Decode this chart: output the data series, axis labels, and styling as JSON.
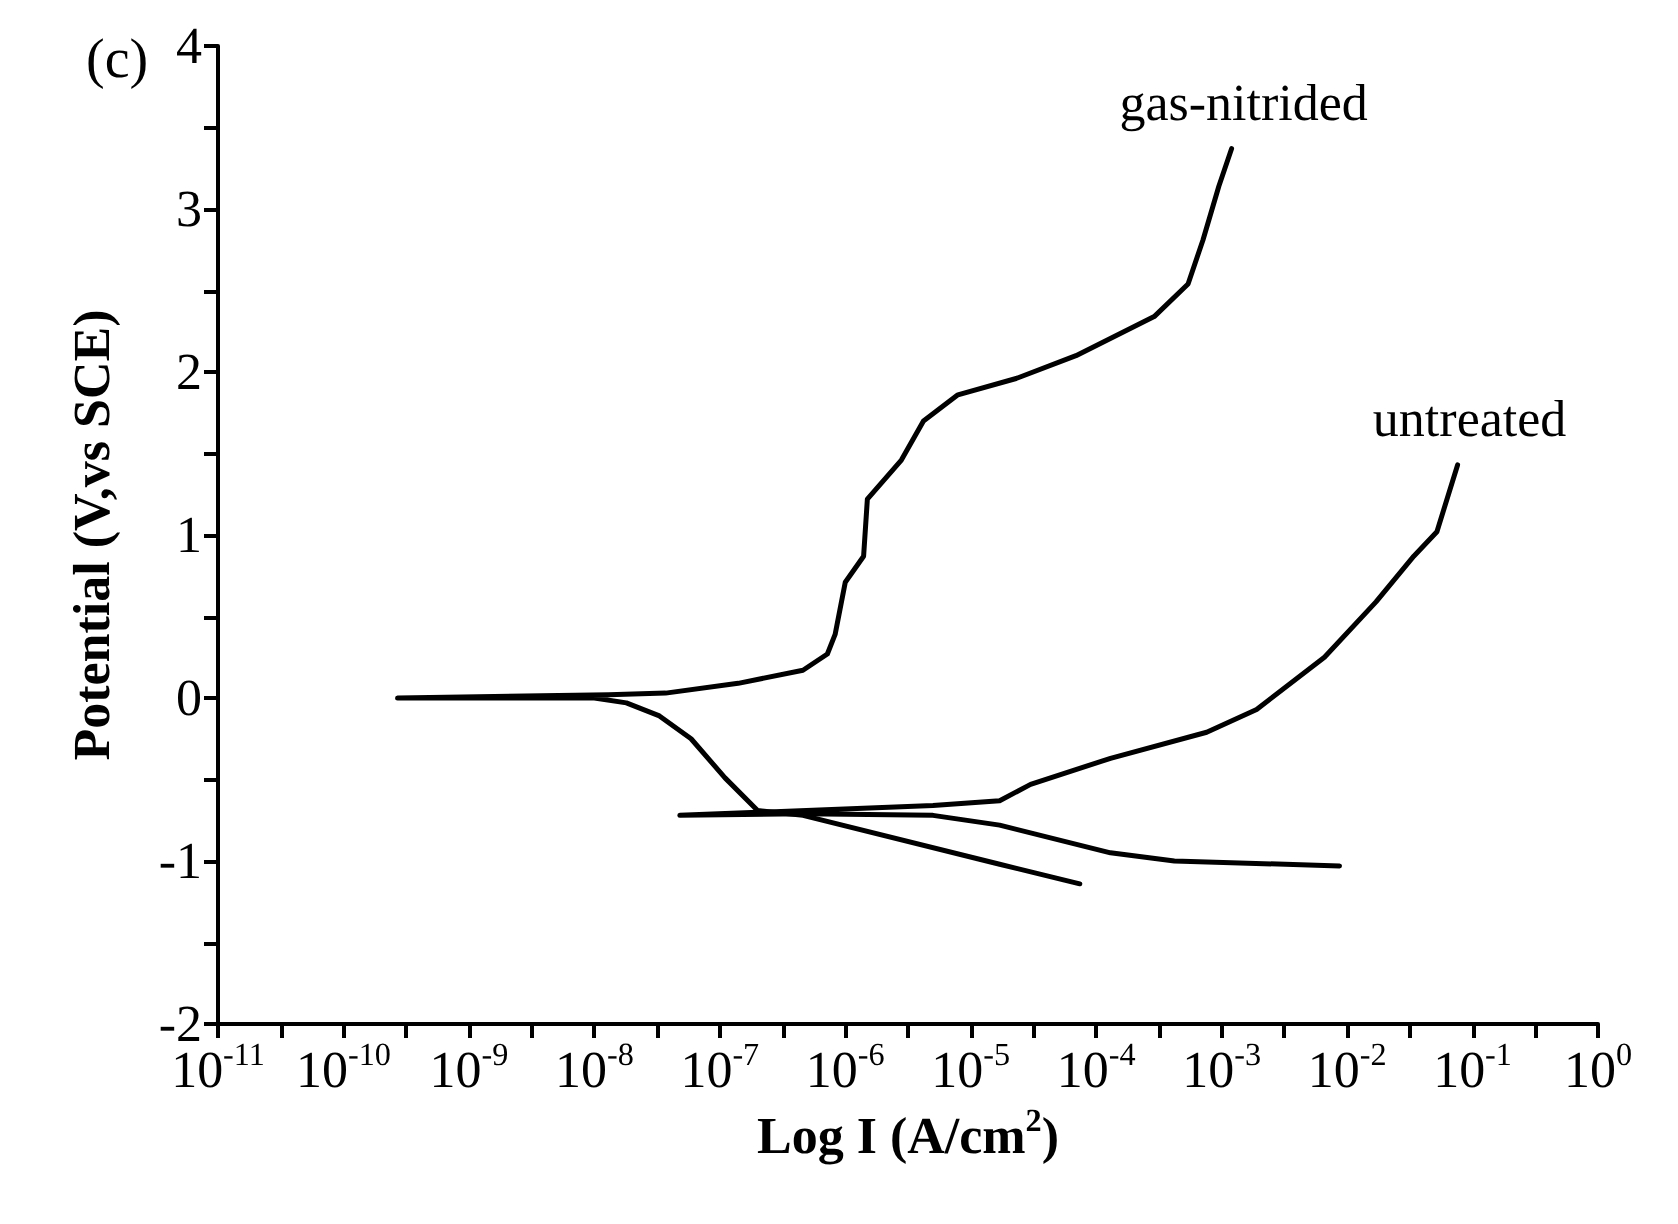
{
  "chart_data": {
    "type": "line",
    "xlabel": "Log I (A/cm$^{2}$)",
    "ylabel": "Potential (V,vs SCE)",
    "annotations": [
      "(c)"
    ],
    "log": "x",
    "grid": false,
    "legend": false,
    "marker": "none",
    "line_style": "solid",
    "xlim": [
      1e-11,
      1
    ],
    "ylim": [
      -2,
      4
    ],
    "xticks": [
      {
        "value": 1e-11,
        "label": "10$^{-11}$"
      },
      {
        "value": 3.16e-11,
        "label": null
      },
      {
        "value": 1e-10,
        "label": "10$^{-10}$"
      },
      {
        "value": 3.16e-10,
        "label": null
      },
      {
        "value": 1e-09,
        "label": "10$^{-9}$"
      },
      {
        "value": 3.16e-09,
        "label": null
      },
      {
        "value": 1e-08,
        "label": "10$^{-8}$"
      },
      {
        "value": 3.16e-08,
        "label": null
      },
      {
        "value": 1e-07,
        "label": "10$^{-7}$"
      },
      {
        "value": 3.16e-07,
        "label": null
      },
      {
        "value": 1e-06,
        "label": "10$^{-6}$"
      },
      {
        "value": 3.16e-06,
        "label": null
      },
      {
        "value": 1e-05,
        "label": "10$^{-5}$"
      },
      {
        "value": 3.16e-05,
        "label": null
      },
      {
        "value": 0.0001,
        "label": "10$^{-4}$"
      },
      {
        "value": 0.000316,
        "label": null
      },
      {
        "value": 0.001,
        "label": "10$^{-3}$"
      },
      {
        "value": 0.00316,
        "label": null
      },
      {
        "value": 0.01,
        "label": "10$^{-2}$"
      },
      {
        "value": 0.0316,
        "label": null
      },
      {
        "value": 0.1,
        "label": "10$^{-1}$"
      },
      {
        "value": 0.316,
        "label": null
      },
      {
        "value": 1,
        "label": "10$^{0}$"
      }
    ],
    "yticks": [
      -2,
      {
        "value": -1.5,
        "label": null
      },
      -1,
      {
        "value": -0.5,
        "label": null
      },
      0,
      {
        "value": 0.5,
        "label": null
      },
      1,
      {
        "value": 1.5,
        "label": null
      },
      2,
      {
        "value": 2.5,
        "label": null
      },
      3,
      {
        "value": 3.5,
        "label": null
      },
      4
    ],
    "series": [
      {
        "name": "gas-nitrided",
        "color": "#000000",
        "x": [
          7.4e-05,
          1.7e-05,
          4.6e-07,
          2e-07,
          1.1e-07,
          5.9e-08,
          3.3e-08,
          1.8e-08,
          1e-08,
          2.7e-10,
          1.3e-08,
          3.7e-08,
          1.4e-07,
          4.6e-07,
          7.2e-07,
          8.3e-07,
          1e-06,
          1.4e-06,
          1.5e-06,
          2.8e-06,
          4.2e-06,
          7.9e-06,
          2.3e-05,
          6.9e-05,
          0.00029,
          0.00054,
          0.00071,
          0.00095,
          0.0012
        ],
        "values": [
          -1.14,
          -1.02,
          -0.72,
          -0.69,
          -0.49,
          -0.25,
          -0.11,
          -0.03,
          0.0,
          0.0,
          0.02,
          0.03,
          0.09,
          0.17,
          0.27,
          0.39,
          0.71,
          0.87,
          1.22,
          1.46,
          1.7,
          1.86,
          1.96,
          2.1,
          2.34,
          2.54,
          2.81,
          3.14,
          3.37
        ]
      },
      {
        "name": "untreated",
        "color": "#000000",
        "x": [
          0.0087,
          0.00042,
          0.00013,
          1.7e-05,
          5e-06,
          4.6e-07,
          4.8e-08,
          5e-06,
          1.7e-05,
          3e-05,
          0.00013,
          0.00076,
          0.0019,
          0.0066,
          0.017,
          0.034,
          0.052,
          0.076
        ],
        "values": [
          -1.03,
          -1.0,
          -0.95,
          -0.78,
          -0.72,
          -0.71,
          -0.72,
          -0.66,
          -0.63,
          -0.53,
          -0.37,
          -0.21,
          -0.07,
          0.25,
          0.59,
          0.87,
          1.02,
          1.43
        ]
      }
    ]
  }
}
